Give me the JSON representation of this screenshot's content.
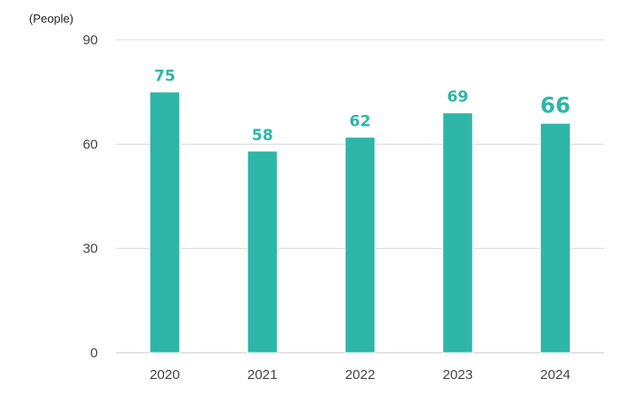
{
  "chart_data": {
    "type": "bar",
    "unit_label": "(People)",
    "categories": [
      "2020",
      "2021",
      "2022",
      "2023",
      "2024"
    ],
    "values": [
      75,
      58,
      62,
      69,
      66
    ],
    "value_labels": [
      "75",
      "58",
      "62",
      "69",
      "66"
    ],
    "emphasized_category": "2024",
    "ylim": [
      0,
      90
    ],
    "yticks": [
      0,
      30,
      60,
      90
    ],
    "ytick_labels": [
      "0",
      "30",
      "60",
      "90"
    ],
    "grid": true,
    "legend": "none",
    "colors": {
      "bar": "#2eb6a8",
      "bar_edge": "#ffffff",
      "label": "#2eb6a8",
      "grid": "#d9d9d9",
      "baseline": "#c8c8c8"
    }
  }
}
